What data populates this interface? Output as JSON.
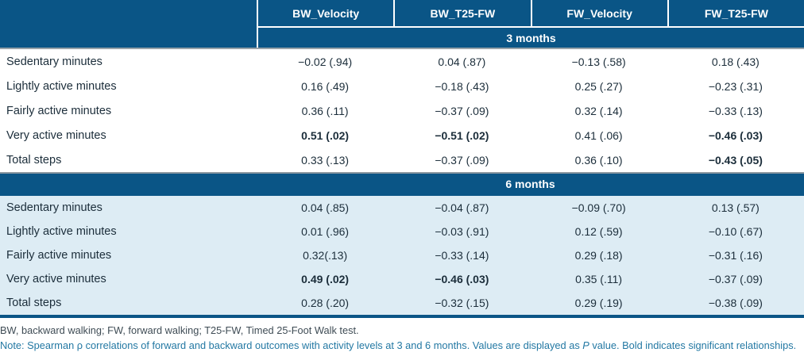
{
  "colors": {
    "header_blue": "#0a5586",
    "section_row_tint": "#ddecf4",
    "header_rule_gray": "#98a2a8",
    "body_text": "#1b2d3a",
    "abbr_text": "#3f4c55",
    "note_text": "#2378a3"
  },
  "table": {
    "columns": [
      "BW_Velocity",
      "BW_T25-FW",
      "FW_Velocity",
      "FW_T25-FW"
    ],
    "sections": [
      {
        "label": "3 months",
        "rows": [
          {
            "label": "Sedentary minutes",
            "cells": [
              {
                "v": "−0.02 (.94)",
                "b": false
              },
              {
                "v": "0.04 (.87)",
                "b": false
              },
              {
                "v": "−0.13 (.58)",
                "b": false
              },
              {
                "v": "0.18 (.43)",
                "b": false
              }
            ]
          },
          {
            "label": "Lightly active minutes",
            "cells": [
              {
                "v": "0.16 (.49)",
                "b": false
              },
              {
                "v": "−0.18 (.43)",
                "b": false
              },
              {
                "v": "0.25 (.27)",
                "b": false
              },
              {
                "v": "−0.23 (.31)",
                "b": false
              }
            ]
          },
          {
            "label": "Fairly active minutes",
            "cells": [
              {
                "v": "0.36 (.11)",
                "b": false
              },
              {
                "v": "−0.37 (.09)",
                "b": false
              },
              {
                "v": "0.32 (.14)",
                "b": false
              },
              {
                "v": "−0.33 (.13)",
                "b": false
              }
            ]
          },
          {
            "label": "Very active minutes",
            "cells": [
              {
                "v": "0.51 (.02)",
                "b": true
              },
              {
                "v": "−0.51 (.02)",
                "b": true
              },
              {
                "v": "0.41 (.06)",
                "b": false
              },
              {
                "v": "−0.46 (.03)",
                "b": true
              }
            ]
          },
          {
            "label": "Total steps",
            "cells": [
              {
                "v": "0.33 (.13)",
                "b": false
              },
              {
                "v": "−0.37 (.09)",
                "b": false
              },
              {
                "v": "0.36 (.10)",
                "b": false
              },
              {
                "v": "−0.43 (.05)",
                "b": true
              }
            ]
          }
        ]
      },
      {
        "label": "6 months",
        "rows": [
          {
            "label": "Sedentary minutes",
            "cells": [
              {
                "v": "0.04 (.85)",
                "b": false
              },
              {
                "v": "−0.04 (.87)",
                "b": false
              },
              {
                "v": "−0.09 (.70)",
                "b": false
              },
              {
                "v": "0.13 (.57)",
                "b": false
              }
            ]
          },
          {
            "label": "Lightly active minutes",
            "cells": [
              {
                "v": "0.01 (.96)",
                "b": false
              },
              {
                "v": "−0.03 (.91)",
                "b": false
              },
              {
                "v": "0.12 (.59)",
                "b": false
              },
              {
                "v": "−0.10 (.67)",
                "b": false
              }
            ]
          },
          {
            "label": "Fairly active minutes",
            "cells": [
              {
                "v": "0.32(.13)",
                "b": false
              },
              {
                "v": "−0.33 (.14)",
                "b": false
              },
              {
                "v": "0.29 (.18)",
                "b": false
              },
              {
                "v": "−0.31 (.16)",
                "b": false
              }
            ]
          },
          {
            "label": "Very active minutes",
            "cells": [
              {
                "v": "0.49 (.02)",
                "b": true
              },
              {
                "v": "−0.46 (.03)",
                "b": true
              },
              {
                "v": "0.35 (.11)",
                "b": false
              },
              {
                "v": "−0.37 (.09)",
                "b": false
              }
            ]
          },
          {
            "label": "Total steps",
            "cells": [
              {
                "v": "0.28 (.20)",
                "b": false
              },
              {
                "v": "−0.32 (.15)",
                "b": false
              },
              {
                "v": "0.29 (.19)",
                "b": false
              },
              {
                "v": "−0.38 (.09)",
                "b": false
              }
            ]
          }
        ]
      }
    ]
  },
  "footer": {
    "abbr": "BW, backward walking; FW, forward walking; T25-FW, Timed 25-Foot Walk test.",
    "note_prefix": "Note: Spearman ρ correlations of forward and backward outcomes with activity levels at 3 and 6 months. Values are displayed as ",
    "note_italic": "P",
    "note_suffix": " value. Bold indicates significant relationships."
  }
}
